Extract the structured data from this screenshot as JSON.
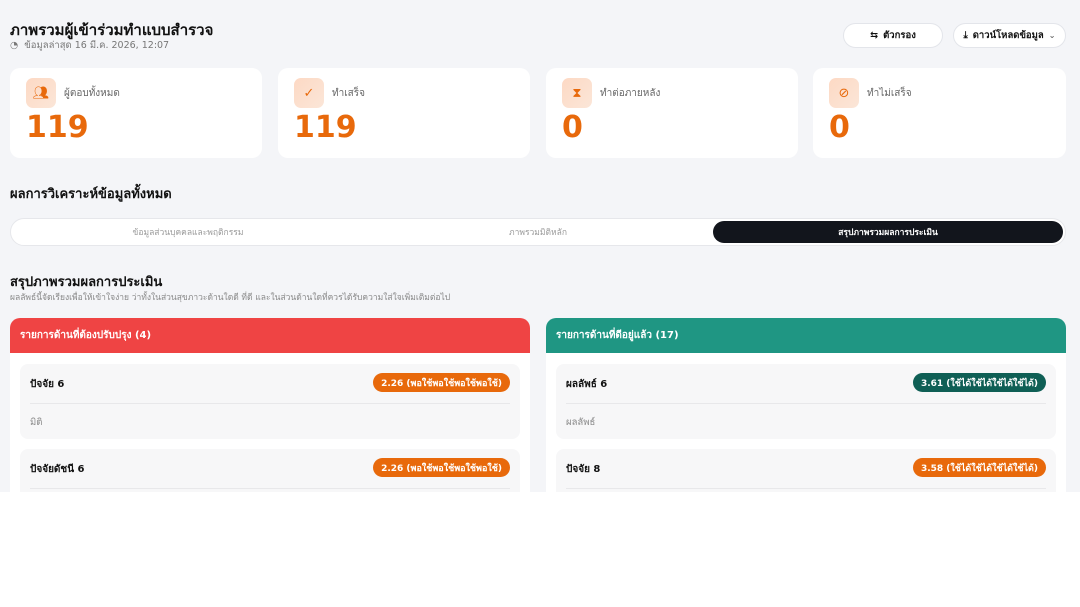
{
  "header": {
    "title": "ภาพรวมผู้เข้าร่วมทำแบบสำรวจ",
    "updated": "ข้อมูลล่าสุด 16 มี.ค. 2026, 12:07",
    "filter_label": "ตัวกรอง",
    "download_label": "ดาวน์โหลดข้อมูล"
  },
  "stats": [
    {
      "label": "ผู้ตอบทั้งหมด",
      "value": "119",
      "icon": "users-icon"
    },
    {
      "label": "ทำเสร็จ",
      "value": "119",
      "icon": "check-badge-icon"
    },
    {
      "label": "ทำต่อภายหลัง",
      "value": "0",
      "icon": "hourglass-icon"
    },
    {
      "label": "ทำไม่เสร็จ",
      "value": "0",
      "icon": "ban-icon"
    }
  ],
  "analysis": {
    "title": "ผลการวิเคราะห์ข้อมูลทั้งหมด",
    "tabs": [
      {
        "label": "ข้อมูลส่วนบุคคลและพฤติกรรม",
        "active": false
      },
      {
        "label": "ภาพรวมมิติหลัก",
        "active": false
      },
      {
        "label": "สรุปภาพรวมผลการประเมิน",
        "active": true
      }
    ]
  },
  "summary": {
    "title": "สรุปภาพรวมผลการประเมิน",
    "description": "ผลลัพธ์นี้จัดเรียงเพื่อให้เข้าใจง่าย ว่าทั้งในส่วนสุขภาวะด้านใดดี ที่ดี และในส่วนด้านใดที่ควรได้รับความใส่ใจเพิ่มเติมต่อไป"
  },
  "panels": [
    {
      "title": "รายการด้านที่ต้องปรับปรุง (4)",
      "color": "#ef4444",
      "items": [
        {
          "name": "ปัจจัย 6",
          "badge": "2.26 (พอใช้พอใช้พอใช้พอใช้)",
          "badge_color": "#e8690b",
          "sub": "มิติ"
        },
        {
          "name": "ปัจจัยดัชนี 6",
          "badge": "2.26 (พอใช้พอใช้พอใช้พอใช้)",
          "badge_color": "#e8690b",
          "sub": ""
        }
      ]
    },
    {
      "title": "รายการด้านที่ดีอยู่แล้ว (17)",
      "color": "#1f9683",
      "items": [
        {
          "name": "ผลลัพธ์ 6",
          "badge": "3.61 (ใช้ได้ใช้ได้ใช้ได้ใช้ได้)",
          "badge_color": "#0f5f55",
          "sub": "ผลลัพธ์"
        },
        {
          "name": "ปัจจัย 8",
          "badge": "3.58 (ใช้ได้ใช้ได้ใช้ได้ใช้ได้)",
          "badge_color": "#e8690b",
          "sub": ""
        }
      ]
    }
  ]
}
